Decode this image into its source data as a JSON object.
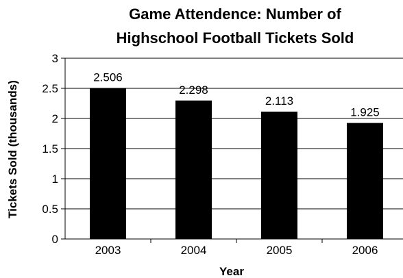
{
  "chart_data": {
    "type": "bar",
    "title_line1": "Game Attendence: Number of",
    "title_line2": "Highschool Football Tickets Sold",
    "xlabel": "Year",
    "ylabel": "Tickets Sold (thousands)",
    "categories": [
      "2003",
      "2004",
      "2005",
      "2006"
    ],
    "values": [
      2.506,
      2.298,
      2.113,
      1.925
    ],
    "data_labels": [
      "2.506",
      "2.298",
      "2.113",
      "1.925"
    ],
    "yticks": [
      "0",
      "0.5",
      "1",
      "1.5",
      "2",
      "2.5",
      "3"
    ],
    "ylim": [
      0,
      3
    ],
    "grid": true,
    "legend": "none",
    "bar_color": "#000000"
  }
}
